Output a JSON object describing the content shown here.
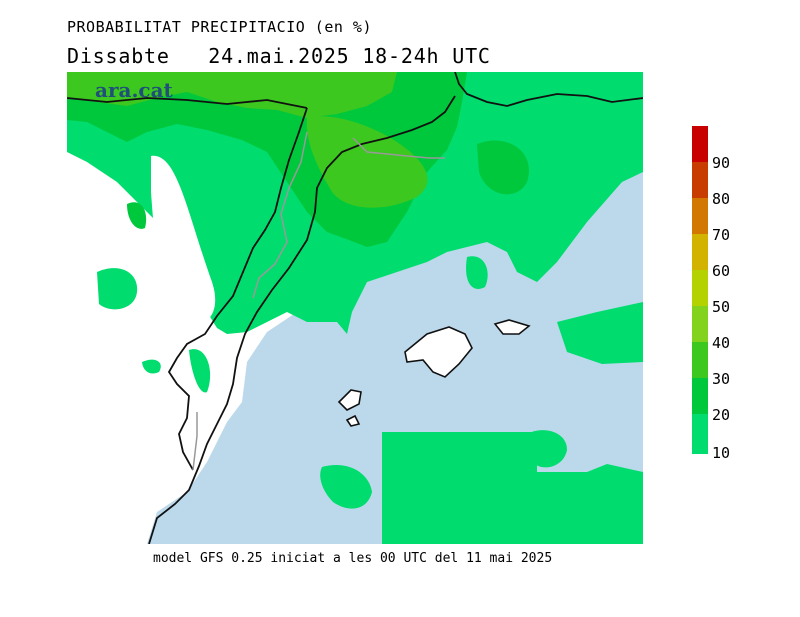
{
  "header": {
    "title": "PROBABILITAT PRECIPITACIO (en %)",
    "subtitle": "Dissabte   24.mai.2025 18-24h UTC"
  },
  "watermark": "ara.cat",
  "footer": "model GFS 0.25 iniciat a les 00 UTC del 11 mai 2025",
  "colors": {
    "sea": "#bcd9ec",
    "land": "#ffffff",
    "c10": "#00dc6e",
    "c20": "#00c83c",
    "c30": "#00b41e",
    "c40": "#3cc81e",
    "c50": "#82d21e",
    "c60": "#b4d200",
    "c70": "#d2b400",
    "c80": "#d27800",
    "c90": "#c83c00",
    "c100": "#c80000"
  },
  "legend": {
    "labels": [
      "90",
      "80",
      "70",
      "60",
      "50",
      "40",
      "30",
      "20",
      "10"
    ]
  }
}
